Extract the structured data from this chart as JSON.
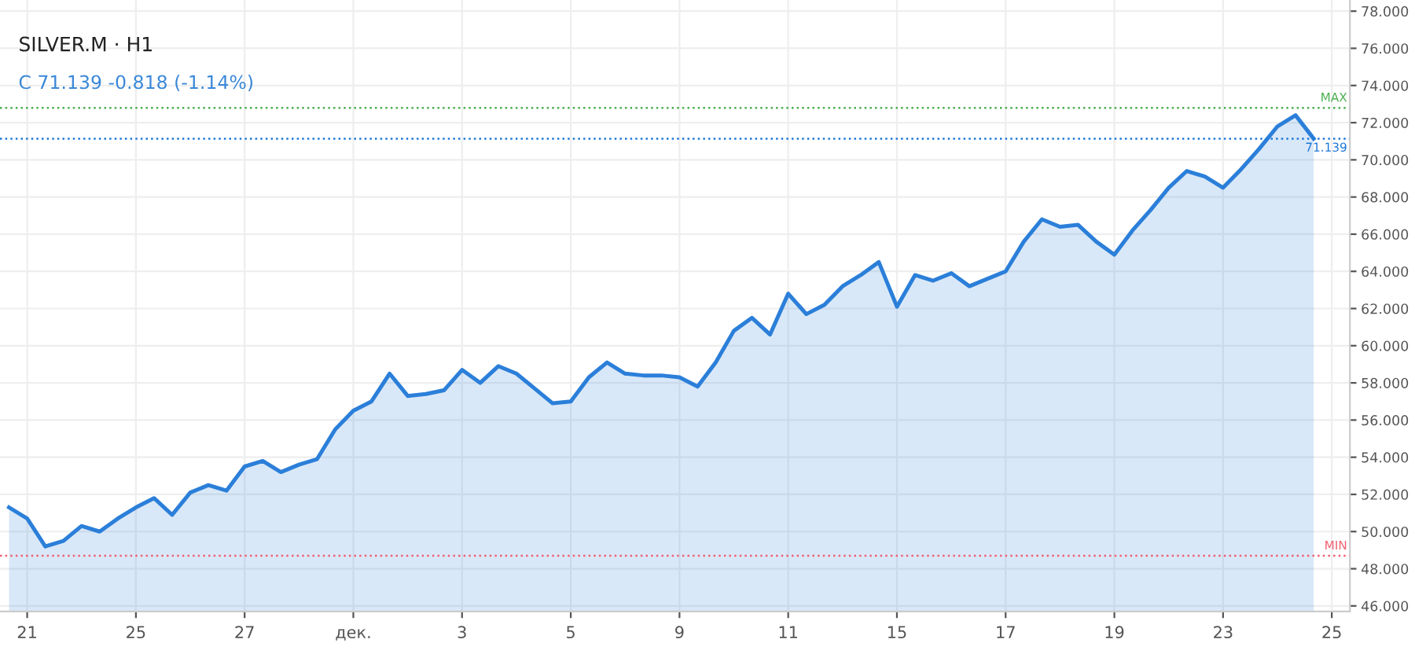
{
  "chart_data": {
    "type": "area",
    "title": "SILVER.M · H1",
    "subtitle": "C 71.139 -0.818 (-1.14%)",
    "ylim": [
      45.7,
      78.6
    ],
    "categories": [
      null,
      "21",
      null,
      null,
      null,
      null,
      null,
      "25",
      null,
      null,
      null,
      null,
      null,
      "27",
      null,
      null,
      null,
      null,
      null,
      "дек.",
      null,
      null,
      null,
      null,
      null,
      "3",
      null,
      null,
      null,
      null,
      null,
      "5",
      null,
      null,
      null,
      null,
      null,
      "9",
      null,
      null,
      null,
      null,
      null,
      "11",
      null,
      null,
      null,
      null,
      null,
      "15",
      null,
      null,
      null,
      null,
      null,
      "17",
      null,
      null,
      null,
      null,
      null,
      "19",
      null,
      null,
      null,
      null,
      null,
      "23",
      null,
      null,
      null,
      null,
      null,
      "25"
    ],
    "yticks": [
      {
        "value": 46,
        "label": "46.000"
      },
      {
        "value": 48,
        "label": "48.000"
      },
      {
        "value": 50,
        "label": "50.000"
      },
      {
        "value": 52,
        "label": "52.000"
      },
      {
        "value": 54,
        "label": "54.000"
      },
      {
        "value": 56,
        "label": "56.000"
      },
      {
        "value": 58,
        "label": "58.000"
      },
      {
        "value": 60,
        "label": "60.000"
      },
      {
        "value": 62,
        "label": "62.000"
      },
      {
        "value": 64,
        "label": "64.000"
      },
      {
        "value": 66,
        "label": "66.000"
      },
      {
        "value": 68,
        "label": "68.000"
      },
      {
        "value": 70,
        "label": "70.000"
      },
      {
        "value": 72,
        "label": "72.000"
      },
      {
        "value": 74,
        "label": "74.000"
      },
      {
        "value": 76,
        "label": "76.000"
      },
      {
        "value": 78,
        "label": "78.000"
      }
    ],
    "grid": true,
    "ref_lines": [
      {
        "axis": "y",
        "value": 72.8,
        "label": "MAX",
        "color": "#4caf50",
        "line_style": "dotted"
      },
      {
        "axis": "y",
        "value": 71.139,
        "label": "71.139",
        "color": "#1e78d8",
        "line_style": "dotted"
      },
      {
        "axis": "y",
        "value": 48.7,
        "label": "MIN",
        "color": "#f06070",
        "line_style": "dotted"
      }
    ],
    "series": [
      {
        "color": "#2b7fd9",
        "values": [
          51.3,
          50.7,
          49.2,
          49.5,
          50.3,
          50.0,
          50.7,
          51.3,
          51.8,
          50.9,
          52.1,
          52.5,
          52.2,
          53.5,
          53.8,
          53.2,
          53.6,
          53.9,
          55.5,
          56.5,
          57.0,
          58.5,
          57.3,
          57.4,
          57.6,
          58.7,
          58.0,
          58.9,
          58.5,
          57.7,
          56.9,
          57.0,
          58.3,
          59.1,
          58.5,
          58.4,
          58.4,
          58.3,
          57.8,
          59.1,
          60.8,
          61.5,
          60.6,
          62.8,
          61.7,
          62.2,
          63.2,
          63.8,
          64.5,
          62.1,
          63.8,
          63.5,
          63.9,
          63.2,
          63.6,
          64.0,
          65.6,
          66.8,
          66.4,
          66.5,
          65.6,
          64.9,
          66.2,
          67.3,
          68.5,
          69.4,
          69.1,
          68.5,
          69.5,
          70.6,
          71.8,
          72.4,
          71.139,
          null
        ]
      }
    ]
  }
}
